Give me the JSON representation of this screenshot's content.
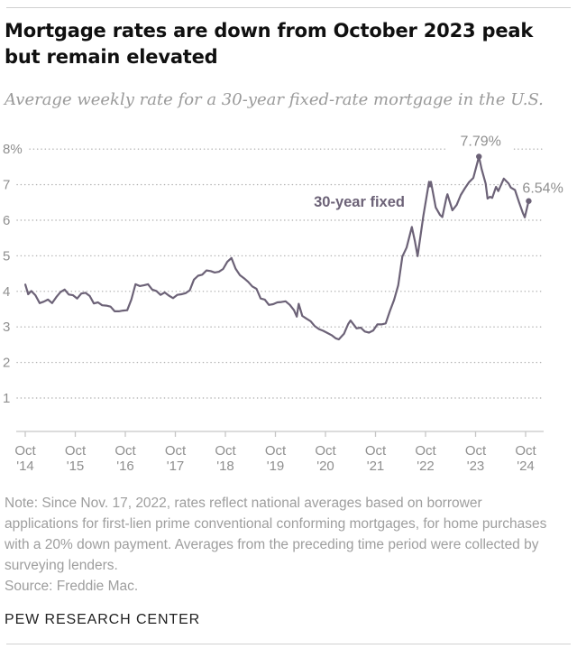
{
  "page": {
    "note": "Note: Since Nov. 17, 2022, rates reflect national averages based on borrower applications for first-lien prime conventional conforming mortgages, for home purchases with a 20% down payment. Averages from the preceding time period were collected by surveying lenders.",
    "source": "Source: Freddie Mac.",
    "footer": "PEW RESEARCH CENTER"
  },
  "chart_data": {
    "type": "line",
    "title": "Mortgage rates are down from October 2023 peak but remain elevated",
    "subtitle": "Average weekly rate for a 30-year fixed-rate mortgage in the U.S.",
    "ylim": [
      1,
      8
    ],
    "xlim": [
      "Oct 2014",
      "Oct 2024"
    ],
    "grid": "dotted horizontal",
    "y_ticks": [
      {
        "label": "8%",
        "value": 8
      },
      {
        "label": "7",
        "value": 7
      },
      {
        "label": "6",
        "value": 6
      },
      {
        "label": "5",
        "value": 5
      },
      {
        "label": "4",
        "value": 4
      },
      {
        "label": "3",
        "value": 3
      },
      {
        "label": "2",
        "value": 2
      },
      {
        "label": "1",
        "value": 1
      }
    ],
    "x_ticks": [
      {
        "month": "Oct",
        "year": "'14"
      },
      {
        "month": "Oct",
        "year": "'15"
      },
      {
        "month": "Oct",
        "year": "'16"
      },
      {
        "month": "Oct",
        "year": "'17"
      },
      {
        "month": "Oct",
        "year": "'18"
      },
      {
        "month": "Oct",
        "year": "'19"
      },
      {
        "month": "Oct",
        "year": "'20"
      },
      {
        "month": "Oct",
        "year": "'21"
      },
      {
        "month": "Oct",
        "year": "'22"
      },
      {
        "month": "Oct",
        "year": "'23"
      },
      {
        "month": "Oct",
        "year": "'24"
      }
    ],
    "annotations": {
      "series_label": "30-year fixed",
      "peak_label": "7.79%",
      "end_label": "6.54%"
    },
    "colors": {
      "line": "#6c6277",
      "grid": "#b3b3b3",
      "axis": "#c6c6c6",
      "tick_text": "#8f8f8f",
      "annotation_text": "#8f8f8f"
    },
    "series": [
      {
        "name": "30-year fixed",
        "unit": "percent",
        "points": [
          [
            "2014-10-02",
            4.19
          ],
          [
            "2014-10-23",
            3.92
          ],
          [
            "2014-11",
            4.01
          ],
          [
            "2014-12",
            3.89
          ],
          [
            "2015-01",
            3.67
          ],
          [
            "2015-02",
            3.71
          ],
          [
            "2015-03",
            3.77
          ],
          [
            "2015-04",
            3.67
          ],
          [
            "2015-05",
            3.84
          ],
          [
            "2015-06",
            3.98
          ],
          [
            "2015-07",
            4.05
          ],
          [
            "2015-08",
            3.91
          ],
          [
            "2015-09",
            3.89
          ],
          [
            "2015-10",
            3.8
          ],
          [
            "2015-11",
            3.94
          ],
          [
            "2015-12",
            3.96
          ],
          [
            "2016-01",
            3.87
          ],
          [
            "2016-02",
            3.66
          ],
          [
            "2016-03",
            3.69
          ],
          [
            "2016-04",
            3.61
          ],
          [
            "2016-05",
            3.6
          ],
          [
            "2016-06",
            3.57
          ],
          [
            "2016-07",
            3.44
          ],
          [
            "2016-08",
            3.44
          ],
          [
            "2016-09",
            3.46
          ],
          [
            "2016-10",
            3.47
          ],
          [
            "2016-11",
            3.77
          ],
          [
            "2016-12",
            4.2
          ],
          [
            "2017-01",
            4.15
          ],
          [
            "2017-02",
            4.17
          ],
          [
            "2017-03",
            4.2
          ],
          [
            "2017-04",
            4.05
          ],
          [
            "2017-05",
            4.01
          ],
          [
            "2017-06",
            3.9
          ],
          [
            "2017-07",
            3.97
          ],
          [
            "2017-08",
            3.88
          ],
          [
            "2017-09",
            3.81
          ],
          [
            "2017-10",
            3.9
          ],
          [
            "2017-11",
            3.92
          ],
          [
            "2017-12",
            3.95
          ],
          [
            "2018-01",
            4.03
          ],
          [
            "2018-02",
            4.33
          ],
          [
            "2018-03",
            4.44
          ],
          [
            "2018-04",
            4.47
          ],
          [
            "2018-05",
            4.59
          ],
          [
            "2018-06",
            4.57
          ],
          [
            "2018-07",
            4.53
          ],
          [
            "2018-08",
            4.55
          ],
          [
            "2018-09",
            4.63
          ],
          [
            "2018-10",
            4.83
          ],
          [
            "2018-11-15",
            4.94
          ],
          [
            "2018-12",
            4.64
          ],
          [
            "2019-01",
            4.46
          ],
          [
            "2019-02",
            4.37
          ],
          [
            "2019-03",
            4.27
          ],
          [
            "2019-04",
            4.14
          ],
          [
            "2019-05",
            4.07
          ],
          [
            "2019-06",
            3.8
          ],
          [
            "2019-07",
            3.77
          ],
          [
            "2019-08",
            3.62
          ],
          [
            "2019-09",
            3.64
          ],
          [
            "2019-10",
            3.69
          ],
          [
            "2019-11",
            3.7
          ],
          [
            "2019-12",
            3.72
          ],
          [
            "2020-01",
            3.62
          ],
          [
            "2020-02",
            3.47
          ],
          [
            "2020-03-05",
            3.29
          ],
          [
            "2020-03-19",
            3.65
          ],
          [
            "2020-04",
            3.31
          ],
          [
            "2020-05",
            3.23
          ],
          [
            "2020-06",
            3.16
          ],
          [
            "2020-07",
            3.02
          ],
          [
            "2020-08",
            2.94
          ],
          [
            "2020-09",
            2.89
          ],
          [
            "2020-10",
            2.83
          ],
          [
            "2020-11",
            2.77
          ],
          [
            "2020-12",
            2.68
          ],
          [
            "2021-01-07",
            2.65
          ],
          [
            "2021-02",
            2.81
          ],
          [
            "2021-03",
            3.08
          ],
          [
            "2021-04-01",
            3.18
          ],
          [
            "2021-05",
            2.96
          ],
          [
            "2021-06",
            2.98
          ],
          [
            "2021-07",
            2.87
          ],
          [
            "2021-08",
            2.84
          ],
          [
            "2021-09",
            2.9
          ],
          [
            "2021-10",
            3.07
          ],
          [
            "2021-11",
            3.07
          ],
          [
            "2021-12",
            3.1
          ],
          [
            "2022-01",
            3.45
          ],
          [
            "2022-02",
            3.76
          ],
          [
            "2022-03",
            4.17
          ],
          [
            "2022-04",
            4.98
          ],
          [
            "2022-05",
            5.23
          ],
          [
            "2022-06-23",
            5.81
          ],
          [
            "2022-07",
            5.41
          ],
          [
            "2022-08-04",
            4.99
          ],
          [
            "2022-09",
            6.11
          ],
          [
            "2022-10-27",
            7.08
          ],
          [
            "2022-11-03",
            6.95
          ],
          [
            "2022-11-10",
            7.08
          ],
          [
            "2022-12",
            6.36
          ],
          [
            "2023-01",
            6.15
          ],
          [
            "2023-02-02",
            6.09
          ],
          [
            "2023-03-02",
            6.65
          ],
          [
            "2023-03-09",
            6.73
          ],
          [
            "2023-04",
            6.28
          ],
          [
            "2023-05",
            6.43
          ],
          [
            "2023-06",
            6.71
          ],
          [
            "2023-07",
            6.9
          ],
          [
            "2023-08",
            7.07
          ],
          [
            "2023-09",
            7.19
          ],
          [
            "2023-10",
            7.63
          ],
          [
            "2023-10-26",
            7.79
          ],
          [
            "2023-11",
            7.44
          ],
          [
            "2023-12-14",
            7.03
          ],
          [
            "2023-12-28",
            6.61
          ],
          [
            "2024-01",
            6.66
          ],
          [
            "2024-02-01",
            6.63
          ],
          [
            "2024-02-29",
            6.94
          ],
          [
            "2024-03",
            6.82
          ],
          [
            "2024-04-25",
            7.17
          ],
          [
            "2024-05-30",
            7.03
          ],
          [
            "2024-06",
            6.92
          ],
          [
            "2024-07",
            6.85
          ],
          [
            "2024-08",
            6.5
          ],
          [
            "2024-09-12",
            6.2
          ],
          [
            "2024-09-26",
            6.08
          ],
          [
            "2024-10-17",
            6.44
          ],
          [
            "2024-10-24",
            6.54
          ]
        ]
      }
    ]
  }
}
